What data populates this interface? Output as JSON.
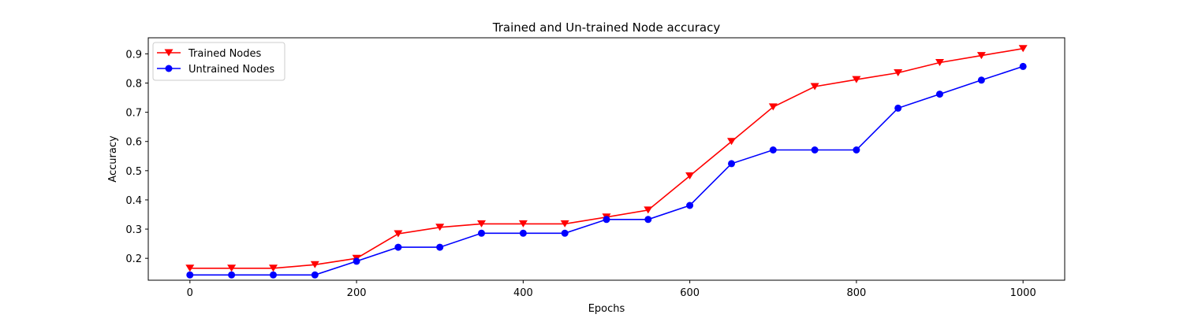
{
  "chart_data": {
    "type": "line",
    "title": "Trained and Un-trained Node accuracy",
    "xlabel": "Epochs",
    "ylabel": "Accuracy",
    "xlim": [
      -50,
      1050
    ],
    "ylim": [
      0.125,
      0.955
    ],
    "xticks": [
      0,
      200,
      400,
      600,
      800,
      1000
    ],
    "yticks": [
      0.2,
      0.3,
      0.4,
      0.5,
      0.6,
      0.7,
      0.8,
      0.9
    ],
    "grid": false,
    "legend_position": "top-left",
    "x": [
      0,
      50,
      100,
      150,
      200,
      250,
      300,
      350,
      400,
      450,
      500,
      550,
      600,
      650,
      700,
      750,
      800,
      850,
      900,
      950,
      1000
    ],
    "series": [
      {
        "name": "Trained Nodes",
        "color": "#ff0000",
        "marker": "triangle-down",
        "values": [
          0.166,
          0.166,
          0.166,
          0.178,
          0.2,
          0.284,
          0.306,
          0.318,
          0.318,
          0.318,
          0.341,
          0.365,
          0.482,
          0.6,
          0.718,
          0.788,
          0.812,
          0.835,
          0.87,
          0.894,
          0.918
        ]
      },
      {
        "name": "Untrained Nodes",
        "color": "#0000ff",
        "marker": "circle",
        "values": [
          0.143,
          0.143,
          0.143,
          0.143,
          0.19,
          0.238,
          0.238,
          0.286,
          0.286,
          0.286,
          0.333,
          0.333,
          0.381,
          0.524,
          0.571,
          0.571,
          0.571,
          0.714,
          0.762,
          0.81,
          0.857
        ]
      }
    ]
  }
}
